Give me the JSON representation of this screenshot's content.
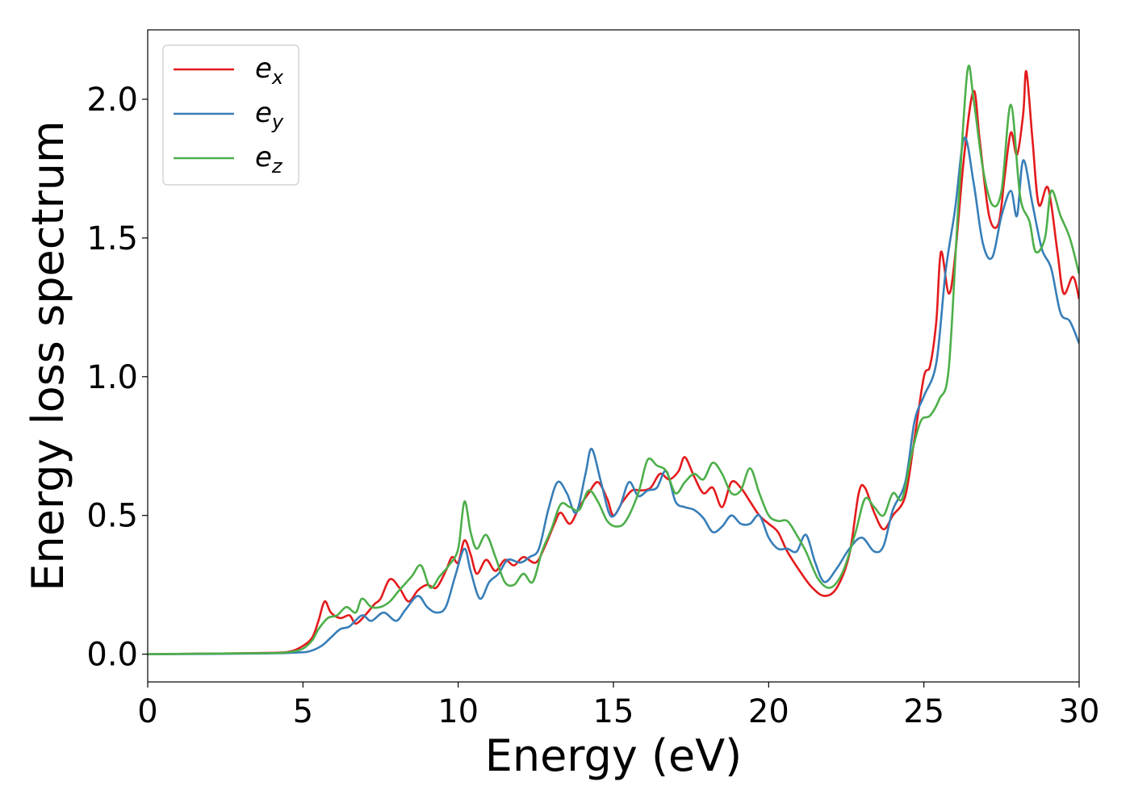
{
  "chart_data": {
    "type": "line",
    "xlabel": "Energy (eV)",
    "ylabel": "Energy loss spectrum",
    "xlim": [
      0,
      30
    ],
    "ylim": [
      -0.1,
      2.25
    ],
    "x_ticks": [
      "0",
      "5",
      "10",
      "15",
      "20",
      "25",
      "30"
    ],
    "y_ticks": [
      "0.0",
      "0.5",
      "1.0",
      "1.5",
      "2.0"
    ],
    "grid": false,
    "legend_position": "top-left",
    "series": [
      {
        "name": "e_x",
        "label_base": "e",
        "label_sub": "x",
        "color": "#e41a1c",
        "points": [
          [
            0,
            0
          ],
          [
            2,
            0.002
          ],
          [
            4,
            0.005
          ],
          [
            4.6,
            0.01
          ],
          [
            5,
            0.03
          ],
          [
            5.3,
            0.06
          ],
          [
            5.5,
            0.12
          ],
          [
            5.7,
            0.19
          ],
          [
            5.9,
            0.15
          ],
          [
            6.2,
            0.13
          ],
          [
            6.5,
            0.14
          ],
          [
            6.7,
            0.11
          ],
          [
            7,
            0.14
          ],
          [
            7.3,
            0.18
          ],
          [
            7.5,
            0.2
          ],
          [
            7.8,
            0.27
          ],
          [
            8.1,
            0.24
          ],
          [
            8.4,
            0.19
          ],
          [
            8.7,
            0.23
          ],
          [
            9,
            0.25
          ],
          [
            9.3,
            0.24
          ],
          [
            9.6,
            0.3
          ],
          [
            9.8,
            0.35
          ],
          [
            10,
            0.33
          ],
          [
            10.2,
            0.41
          ],
          [
            10.4,
            0.36
          ],
          [
            10.6,
            0.29
          ],
          [
            10.9,
            0.34
          ],
          [
            11.2,
            0.3
          ],
          [
            11.5,
            0.34
          ],
          [
            11.8,
            0.32
          ],
          [
            12.1,
            0.35
          ],
          [
            12.5,
            0.33
          ],
          [
            12.8,
            0.39
          ],
          [
            13.1,
            0.47
          ],
          [
            13.3,
            0.51
          ],
          [
            13.6,
            0.47
          ],
          [
            13.9,
            0.53
          ],
          [
            14.2,
            0.58
          ],
          [
            14.5,
            0.62
          ],
          [
            14.8,
            0.56
          ],
          [
            15,
            0.5
          ],
          [
            15.3,
            0.55
          ],
          [
            15.6,
            0.59
          ],
          [
            15.9,
            0.59
          ],
          [
            16.2,
            0.6
          ],
          [
            16.5,
            0.65
          ],
          [
            16.8,
            0.63
          ],
          [
            17.1,
            0.66
          ],
          [
            17.3,
            0.71
          ],
          [
            17.6,
            0.64
          ],
          [
            17.9,
            0.58
          ],
          [
            18.2,
            0.6
          ],
          [
            18.5,
            0.53
          ],
          [
            18.8,
            0.62
          ],
          [
            19.1,
            0.6
          ],
          [
            19.4,
            0.55
          ],
          [
            19.7,
            0.5
          ],
          [
            20,
            0.47
          ],
          [
            20.3,
            0.44
          ],
          [
            20.6,
            0.37
          ],
          [
            21,
            0.3
          ],
          [
            21.4,
            0.24
          ],
          [
            21.8,
            0.21
          ],
          [
            22.2,
            0.24
          ],
          [
            22.6,
            0.36
          ],
          [
            22.9,
            0.58
          ],
          [
            23.1,
            0.6
          ],
          [
            23.4,
            0.51
          ],
          [
            23.7,
            0.45
          ],
          [
            24,
            0.5
          ],
          [
            24.4,
            0.57
          ],
          [
            24.7,
            0.78
          ],
          [
            25,
            1.0
          ],
          [
            25.2,
            1.04
          ],
          [
            25.4,
            1.2
          ],
          [
            25.55,
            1.45
          ],
          [
            25.8,
            1.3
          ],
          [
            26,
            1.43
          ],
          [
            26.3,
            1.8
          ],
          [
            26.6,
            2.03
          ],
          [
            26.8,
            1.85
          ],
          [
            27.1,
            1.58
          ],
          [
            27.4,
            1.55
          ],
          [
            27.6,
            1.72
          ],
          [
            27.8,
            1.88
          ],
          [
            28,
            1.8
          ],
          [
            28.2,
            1.95
          ],
          [
            28.3,
            2.1
          ],
          [
            28.5,
            1.85
          ],
          [
            28.7,
            1.62
          ],
          [
            29,
            1.68
          ],
          [
            29.3,
            1.45
          ],
          [
            29.5,
            1.3
          ],
          [
            29.8,
            1.36
          ],
          [
            30,
            1.28
          ]
        ]
      },
      {
        "name": "e_y",
        "label_base": "e",
        "label_sub": "y",
        "color": "#377eb8",
        "points": [
          [
            0,
            0
          ],
          [
            2,
            0.001
          ],
          [
            4,
            0.003
          ],
          [
            4.8,
            0.006
          ],
          [
            5.2,
            0.01
          ],
          [
            5.6,
            0.03
          ],
          [
            5.9,
            0.06
          ],
          [
            6.2,
            0.09
          ],
          [
            6.5,
            0.1
          ],
          [
            6.9,
            0.14
          ],
          [
            7.2,
            0.12
          ],
          [
            7.6,
            0.15
          ],
          [
            8,
            0.12
          ],
          [
            8.3,
            0.16
          ],
          [
            8.7,
            0.21
          ],
          [
            9,
            0.17
          ],
          [
            9.3,
            0.15
          ],
          [
            9.6,
            0.17
          ],
          [
            9.9,
            0.28
          ],
          [
            10.2,
            0.38
          ],
          [
            10.4,
            0.3
          ],
          [
            10.7,
            0.2
          ],
          [
            11,
            0.26
          ],
          [
            11.3,
            0.29
          ],
          [
            11.6,
            0.34
          ],
          [
            12,
            0.33
          ],
          [
            12.3,
            0.35
          ],
          [
            12.6,
            0.38
          ],
          [
            12.9,
            0.52
          ],
          [
            13.2,
            0.62
          ],
          [
            13.5,
            0.58
          ],
          [
            13.8,
            0.51
          ],
          [
            14.1,
            0.65
          ],
          [
            14.3,
            0.74
          ],
          [
            14.6,
            0.62
          ],
          [
            14.9,
            0.5
          ],
          [
            15.2,
            0.53
          ],
          [
            15.5,
            0.62
          ],
          [
            15.8,
            0.57
          ],
          [
            16.1,
            0.59
          ],
          [
            16.4,
            0.6
          ],
          [
            16.7,
            0.66
          ],
          [
            17,
            0.55
          ],
          [
            17.3,
            0.53
          ],
          [
            17.6,
            0.52
          ],
          [
            17.9,
            0.49
          ],
          [
            18.2,
            0.44
          ],
          [
            18.5,
            0.46
          ],
          [
            18.8,
            0.5
          ],
          [
            19.1,
            0.47
          ],
          [
            19.4,
            0.47
          ],
          [
            19.7,
            0.5
          ],
          [
            20,
            0.42
          ],
          [
            20.3,
            0.38
          ],
          [
            20.6,
            0.38
          ],
          [
            20.9,
            0.37
          ],
          [
            21.2,
            0.43
          ],
          [
            21.5,
            0.33
          ],
          [
            21.8,
            0.26
          ],
          [
            22.2,
            0.31
          ],
          [
            22.6,
            0.38
          ],
          [
            23,
            0.42
          ],
          [
            23.4,
            0.37
          ],
          [
            23.7,
            0.39
          ],
          [
            24,
            0.52
          ],
          [
            24.4,
            0.62
          ],
          [
            24.7,
            0.84
          ],
          [
            25,
            0.93
          ],
          [
            25.4,
            1.05
          ],
          [
            25.7,
            1.38
          ],
          [
            26,
            1.6
          ],
          [
            26.3,
            1.86
          ],
          [
            26.6,
            1.7
          ],
          [
            26.9,
            1.48
          ],
          [
            27.2,
            1.43
          ],
          [
            27.5,
            1.58
          ],
          [
            27.8,
            1.67
          ],
          [
            28,
            1.58
          ],
          [
            28.2,
            1.78
          ],
          [
            28.5,
            1.62
          ],
          [
            28.8,
            1.46
          ],
          [
            29.1,
            1.39
          ],
          [
            29.4,
            1.23
          ],
          [
            29.7,
            1.2
          ],
          [
            30,
            1.12
          ]
        ]
      },
      {
        "name": "e_z",
        "label_base": "e",
        "label_sub": "z",
        "color": "#4daf4a",
        "points": [
          [
            0,
            0
          ],
          [
            2,
            0.002
          ],
          [
            4,
            0.004
          ],
          [
            4.6,
            0.008
          ],
          [
            5,
            0.02
          ],
          [
            5.3,
            0.05
          ],
          [
            5.5,
            0.09
          ],
          [
            5.8,
            0.13
          ],
          [
            6.1,
            0.14
          ],
          [
            6.4,
            0.17
          ],
          [
            6.7,
            0.15
          ],
          [
            6.9,
            0.2
          ],
          [
            7.2,
            0.17
          ],
          [
            7.5,
            0.17
          ],
          [
            7.8,
            0.19
          ],
          [
            8.1,
            0.23
          ],
          [
            8.5,
            0.28
          ],
          [
            8.8,
            0.32
          ],
          [
            9.1,
            0.24
          ],
          [
            9.4,
            0.28
          ],
          [
            9.7,
            0.32
          ],
          [
            10,
            0.38
          ],
          [
            10.2,
            0.55
          ],
          [
            10.4,
            0.44
          ],
          [
            10.6,
            0.38
          ],
          [
            10.9,
            0.43
          ],
          [
            11.2,
            0.35
          ],
          [
            11.5,
            0.26
          ],
          [
            11.8,
            0.25
          ],
          [
            12.1,
            0.29
          ],
          [
            12.4,
            0.26
          ],
          [
            12.7,
            0.37
          ],
          [
            13,
            0.45
          ],
          [
            13.3,
            0.54
          ],
          [
            13.6,
            0.53
          ],
          [
            13.9,
            0.52
          ],
          [
            14.2,
            0.59
          ],
          [
            14.5,
            0.55
          ],
          [
            14.8,
            0.48
          ],
          [
            15.1,
            0.46
          ],
          [
            15.4,
            0.48
          ],
          [
            15.8,
            0.58
          ],
          [
            16.1,
            0.7
          ],
          [
            16.4,
            0.68
          ],
          [
            16.7,
            0.66
          ],
          [
            17,
            0.58
          ],
          [
            17.3,
            0.62
          ],
          [
            17.6,
            0.65
          ],
          [
            17.9,
            0.63
          ],
          [
            18.2,
            0.69
          ],
          [
            18.5,
            0.65
          ],
          [
            18.8,
            0.58
          ],
          [
            19.1,
            0.59
          ],
          [
            19.4,
            0.67
          ],
          [
            19.7,
            0.58
          ],
          [
            20,
            0.5
          ],
          [
            20.3,
            0.48
          ],
          [
            20.6,
            0.48
          ],
          [
            20.9,
            0.43
          ],
          [
            21.2,
            0.37
          ],
          [
            21.6,
            0.27
          ],
          [
            22,
            0.24
          ],
          [
            22.4,
            0.3
          ],
          [
            22.8,
            0.44
          ],
          [
            23.1,
            0.56
          ],
          [
            23.4,
            0.53
          ],
          [
            23.7,
            0.5
          ],
          [
            24,
            0.58
          ],
          [
            24.3,
            0.56
          ],
          [
            24.6,
            0.72
          ],
          [
            24.9,
            0.84
          ],
          [
            25.2,
            0.86
          ],
          [
            25.5,
            0.92
          ],
          [
            25.8,
            1.03
          ],
          [
            26.1,
            1.6
          ],
          [
            26.4,
            2.1
          ],
          [
            26.6,
            2.0
          ],
          [
            26.9,
            1.75
          ],
          [
            27.2,
            1.62
          ],
          [
            27.5,
            1.67
          ],
          [
            27.8,
            1.98
          ],
          [
            28.1,
            1.65
          ],
          [
            28.4,
            1.56
          ],
          [
            28.6,
            1.45
          ],
          [
            28.9,
            1.5
          ],
          [
            29.1,
            1.67
          ],
          [
            29.4,
            1.58
          ],
          [
            29.7,
            1.5
          ],
          [
            30,
            1.37
          ]
        ]
      }
    ]
  }
}
